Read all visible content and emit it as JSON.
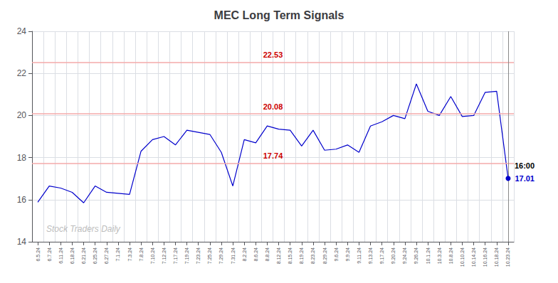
{
  "chart_data": {
    "type": "line",
    "title": "MEC Long Term Signals",
    "watermark": "Stock Traders Daily",
    "categories": [
      "6.5.24",
      "6.7.24",
      "6.11.24",
      "6.18.24",
      "6.21.24",
      "6.25.24",
      "6.27.24",
      "7.1.24",
      "7.3.24",
      "7.8.24",
      "7.10.24",
      "7.12.24",
      "7.17.24",
      "7.19.24",
      "7.23.24",
      "7.25.24",
      "7.29.24",
      "7.31.24",
      "8.2.24",
      "8.6.24",
      "8.8.24",
      "8.12.24",
      "8.15.24",
      "8.19.24",
      "8.23.24",
      "8.29.24",
      "9.6.24",
      "9.9.24",
      "9.11.24",
      "9.13.24",
      "9.17.24",
      "9.20.24",
      "9.24.24",
      "9.26.24",
      "10.1.24",
      "10.3.24",
      "10.8.24",
      "10.10.24",
      "10.14.24",
      "10.16.24",
      "10.18.24",
      "10.23.24"
    ],
    "values": [
      15.88,
      16.65,
      16.55,
      16.35,
      15.85,
      16.65,
      16.35,
      16.3,
      16.25,
      18.3,
      18.85,
      19.0,
      18.6,
      19.3,
      19.2,
      19.1,
      18.25,
      16.65,
      18.85,
      18.7,
      19.5,
      19.35,
      19.3,
      18.55,
      19.3,
      18.35,
      18.4,
      18.6,
      18.25,
      19.5,
      19.7,
      20.0,
      19.85,
      21.5,
      20.2,
      20.0,
      20.9,
      19.95,
      20.0,
      21.1,
      21.15,
      17.01
    ],
    "color": "#0000cc",
    "hlines": [
      {
        "y": 22.53,
        "label": "22.53"
      },
      {
        "y": 20.08,
        "label": "20.08"
      },
      {
        "y": 17.74,
        "label": "17.74"
      }
    ],
    "hline_color": "#f5aaaa",
    "hline_label_color": "#cc0000",
    "vline_color": "#888888",
    "last_label": "16:00",
    "last_value_label": "17.01",
    "last_value": 17.01,
    "ylim": [
      14,
      24
    ],
    "yticks": [
      14,
      16,
      18,
      20,
      22,
      24
    ],
    "grid": true
  }
}
